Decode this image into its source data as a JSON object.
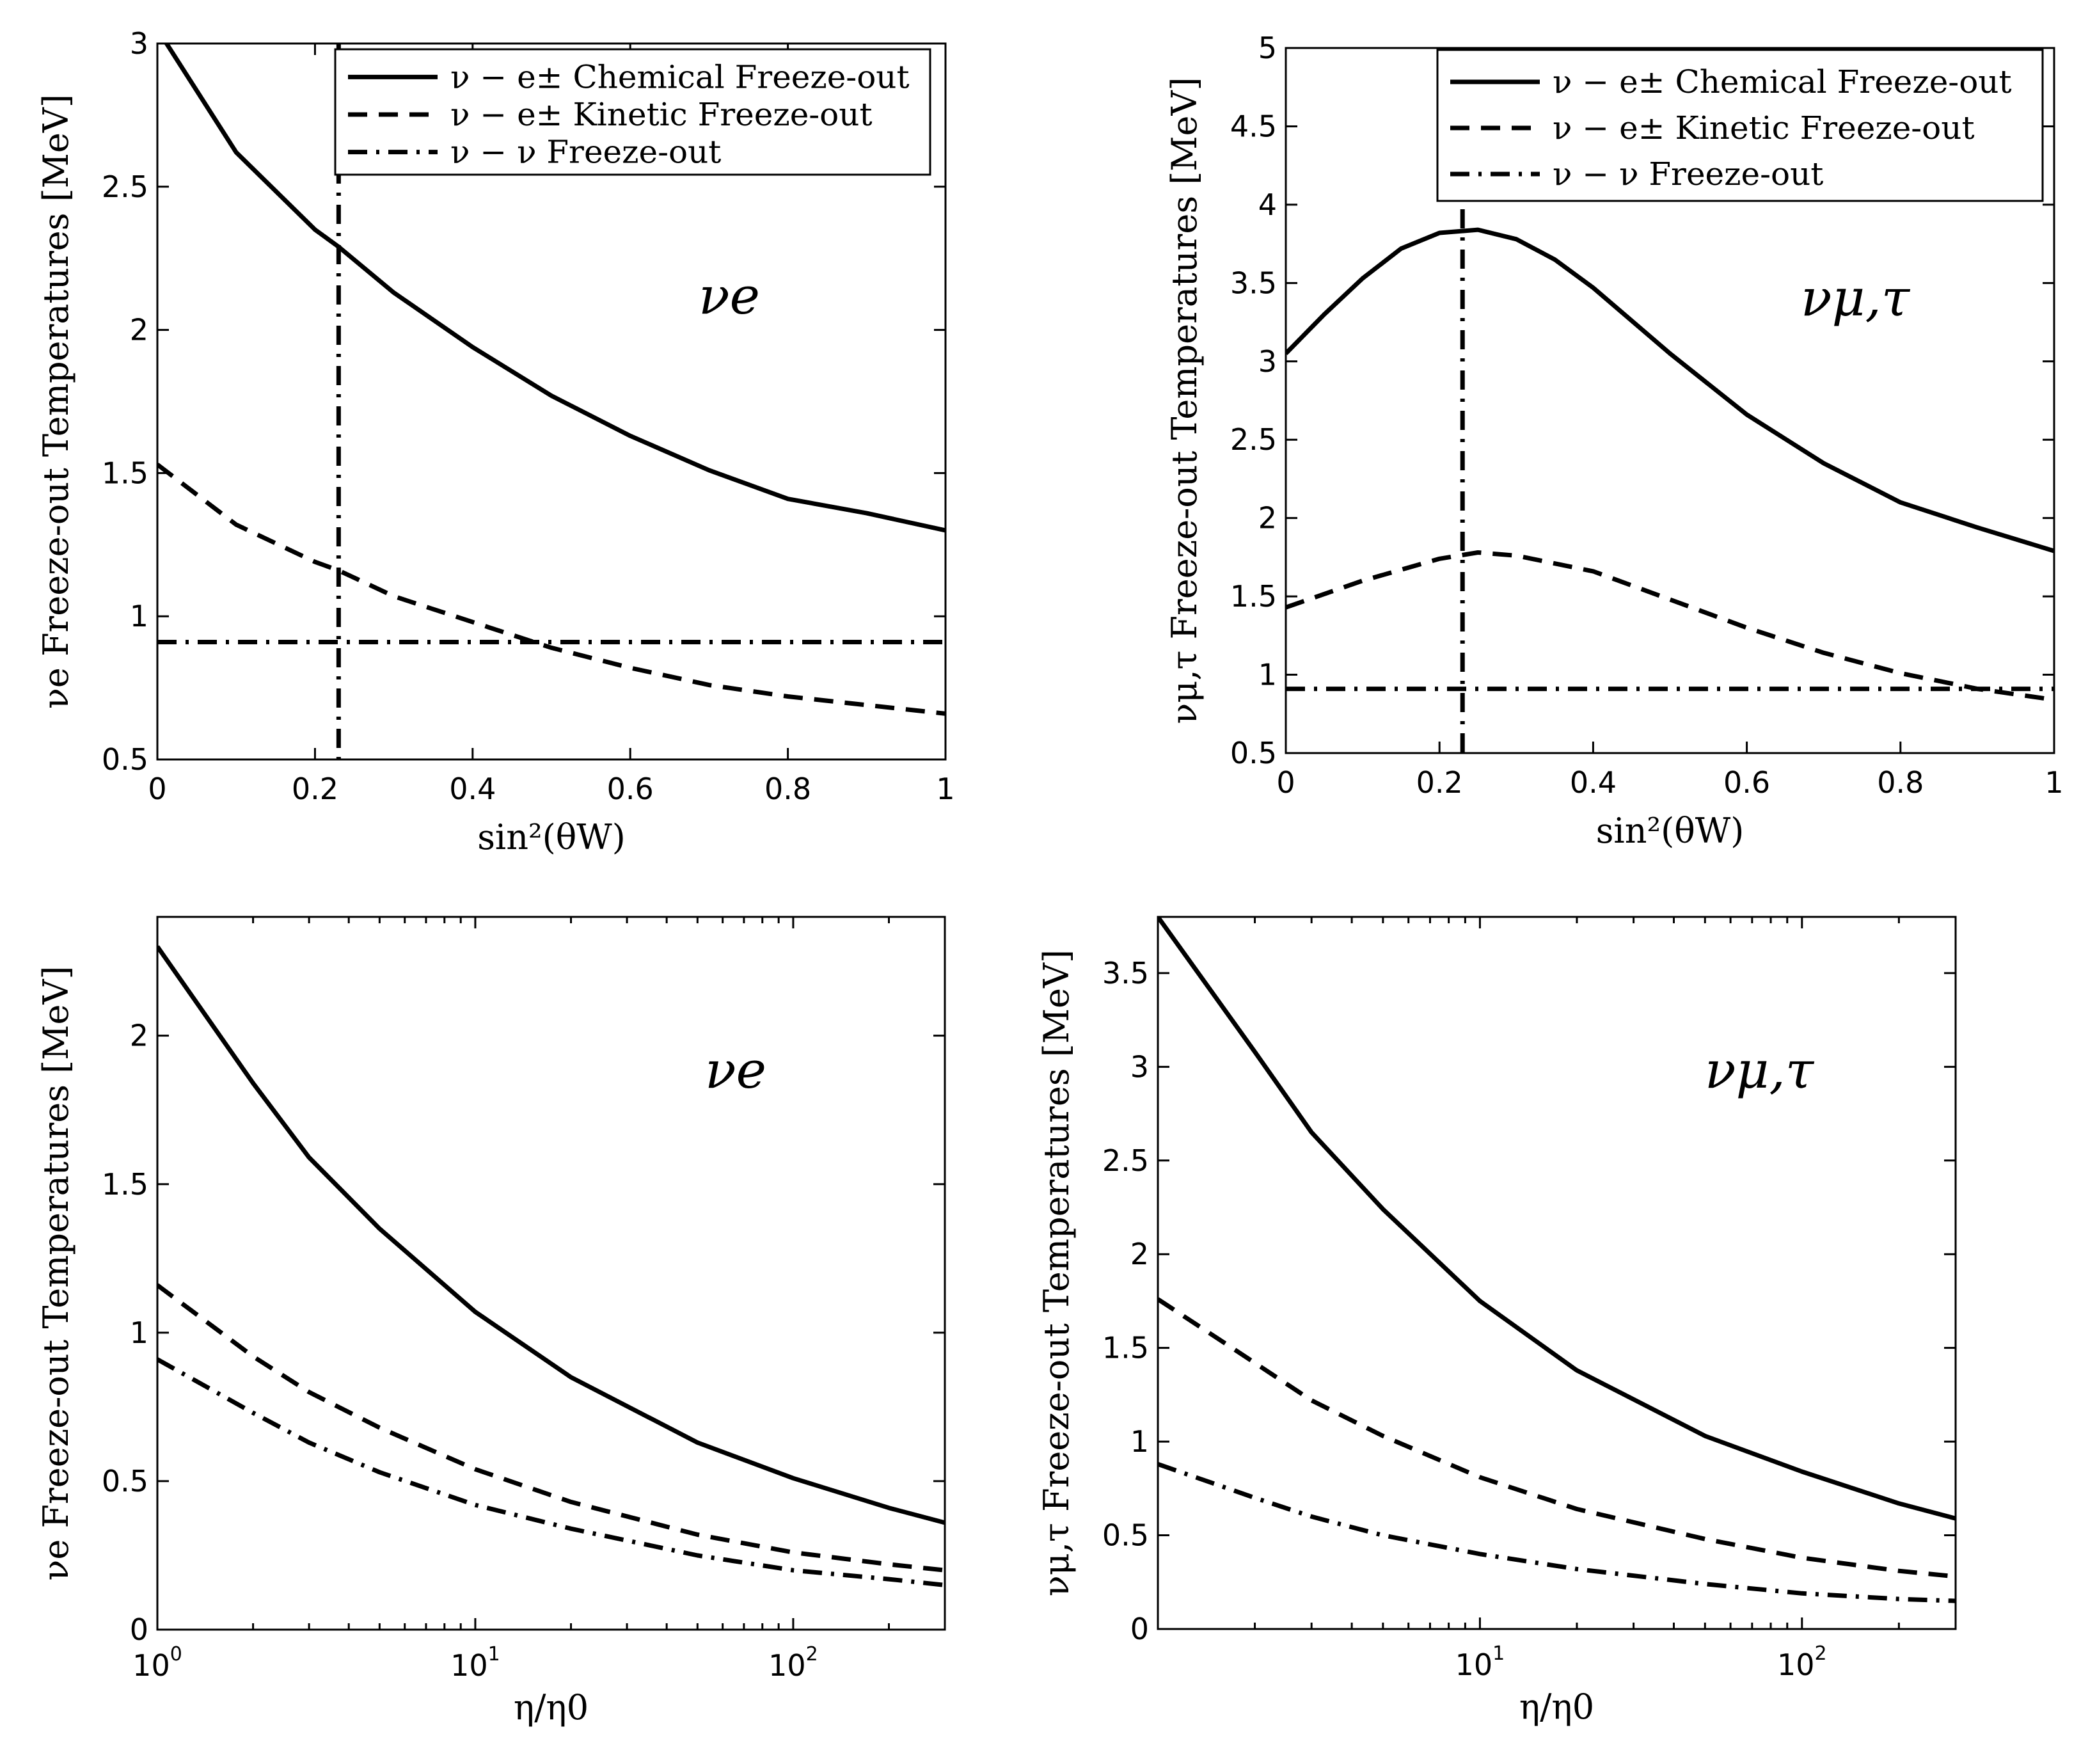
{
  "chart_data": [
    {
      "id": "top-left",
      "type": "line",
      "xscale": "linear",
      "xlim": [
        0,
        1
      ],
      "ylim": [
        0.5,
        3
      ],
      "xticks": [
        0,
        0.2,
        0.4,
        0.6,
        0.8,
        1
      ],
      "xtick_labels": [
        "0",
        "0.2",
        "0.4",
        "0.6",
        "0.8",
        "1"
      ],
      "yticks": [
        0.5,
        1,
        1.5,
        2,
        2.5,
        3
      ],
      "ytick_labels": [
        "0.5",
        "1",
        "1.5",
        "2",
        "2.5",
        "3"
      ],
      "xlabel": "sin²(θW)",
      "ylabel": "νe Freeze-out Temperatures [MeV]",
      "annotation": "νe",
      "legend_position": "top-right",
      "reference_vline": 0.23,
      "series": [
        {
          "name": "ν − e± Chemical Freeze-out",
          "style": "solid",
          "x": [
            0,
            0.1,
            0.2,
            0.23,
            0.3,
            0.4,
            0.5,
            0.6,
            0.7,
            0.8,
            0.9,
            1.0
          ],
          "y": [
            3.05,
            2.62,
            2.35,
            2.29,
            2.13,
            1.94,
            1.77,
            1.63,
            1.51,
            1.41,
            1.36,
            1.3
          ]
        },
        {
          "name": "ν − e± Kinetic Freeze-out",
          "style": "dashed",
          "x": [
            0,
            0.1,
            0.2,
            0.23,
            0.3,
            0.4,
            0.5,
            0.6,
            0.7,
            0.8,
            0.9,
            1.0
          ],
          "y": [
            1.53,
            1.32,
            1.19,
            1.16,
            1.07,
            0.98,
            0.89,
            0.82,
            0.76,
            0.72,
            0.69,
            0.66
          ]
        },
        {
          "name": "ν − ν Freeze-out",
          "style": "dashdot",
          "x": [
            0,
            1
          ],
          "y": [
            0.91,
            0.91
          ]
        }
      ]
    },
    {
      "id": "top-right",
      "type": "line",
      "xscale": "linear",
      "xlim": [
        0,
        1
      ],
      "ylim": [
        0.5,
        5
      ],
      "xticks": [
        0,
        0.2,
        0.4,
        0.6,
        0.8,
        1
      ],
      "xtick_labels": [
        "0",
        "0.2",
        "0.4",
        "0.6",
        "0.8",
        "1"
      ],
      "yticks": [
        0.5,
        1,
        1.5,
        2,
        2.5,
        3,
        3.5,
        4,
        4.5,
        5
      ],
      "ytick_labels": [
        "0.5",
        "1",
        "1.5",
        "2",
        "2.5",
        "3",
        "3.5",
        "4",
        "4.5",
        "5"
      ],
      "xlabel": "sin²(θW)",
      "ylabel": "νμ,τ Freeze-out Temperatures [MeV]",
      "annotation": "νμ,τ",
      "legend_position": "top-right",
      "reference_vline": 0.23,
      "series": [
        {
          "name": "ν − e± Chemical Freeze-out",
          "style": "solid",
          "x": [
            0,
            0.05,
            0.1,
            0.15,
            0.2,
            0.25,
            0.3,
            0.35,
            0.4,
            0.5,
            0.6,
            0.7,
            0.8,
            0.9,
            1.0
          ],
          "y": [
            3.05,
            3.3,
            3.53,
            3.72,
            3.82,
            3.84,
            3.78,
            3.65,
            3.47,
            3.05,
            2.66,
            2.35,
            2.1,
            1.94,
            1.79
          ]
        },
        {
          "name": "ν − e± Kinetic Freeze-out",
          "style": "dashed",
          "x": [
            0,
            0.1,
            0.2,
            0.25,
            0.3,
            0.4,
            0.5,
            0.6,
            0.7,
            0.8,
            0.9,
            1.0
          ],
          "y": [
            1.43,
            1.6,
            1.74,
            1.78,
            1.76,
            1.66,
            1.48,
            1.3,
            1.14,
            1.01,
            0.91,
            0.84
          ]
        },
        {
          "name": "ν − ν Freeze-out",
          "style": "dashdot",
          "x": [
            0,
            1
          ],
          "y": [
            0.91,
            0.91
          ]
        }
      ]
    },
    {
      "id": "bottom-left",
      "type": "line",
      "xscale": "log",
      "xlim": [
        1,
        300
      ],
      "ylim": [
        0,
        2.4
      ],
      "xticks": [
        1,
        10,
        100
      ],
      "xtick_labels": [
        [
          "10",
          "0"
        ],
        [
          "10",
          "1"
        ],
        [
          "10",
          "2"
        ]
      ],
      "yticks": [
        0,
        0.5,
        1,
        1.5,
        2
      ],
      "ytick_labels": [
        "0",
        "0.5",
        "1",
        "1.5",
        "2"
      ],
      "xlabel": "η/η0",
      "ylabel": "νe Freeze-out Temperatures [MeV]",
      "annotation": "νe",
      "series": [
        {
          "name": "ν − e± Chemical Freeze-out",
          "style": "solid",
          "x": [
            1,
            2,
            3,
            5,
            10,
            20,
            50,
            100,
            200,
            300
          ],
          "y": [
            2.3,
            1.84,
            1.59,
            1.35,
            1.07,
            0.85,
            0.63,
            0.51,
            0.41,
            0.36
          ]
        },
        {
          "name": "ν − e± Kinetic Freeze-out",
          "style": "dashed",
          "x": [
            1,
            2,
            3,
            5,
            10,
            20,
            50,
            100,
            200,
            300
          ],
          "y": [
            1.16,
            0.92,
            0.8,
            0.68,
            0.54,
            0.43,
            0.32,
            0.26,
            0.22,
            0.2
          ]
        },
        {
          "name": "ν − ν Freeze-out",
          "style": "dashdot",
          "x": [
            1,
            2,
            3,
            5,
            10,
            20,
            50,
            100,
            200,
            300
          ],
          "y": [
            0.91,
            0.73,
            0.63,
            0.53,
            0.42,
            0.34,
            0.25,
            0.2,
            0.17,
            0.15
          ]
        }
      ]
    },
    {
      "id": "bottom-right",
      "type": "line",
      "xscale": "log",
      "xlim": [
        1,
        300
      ],
      "ylim": [
        0,
        3.8
      ],
      "xticks": [
        10,
        100
      ],
      "xtick_labels": [
        [
          "10",
          "1"
        ],
        [
          "10",
          "2"
        ]
      ],
      "yticks": [
        0,
        0.5,
        1,
        1.5,
        2,
        2.5,
        3,
        3.5
      ],
      "ytick_labels": [
        "0",
        "0.5",
        "1",
        "1.5",
        "2",
        "2.5",
        "3",
        "3.5"
      ],
      "xlabel": "η/η0",
      "ylabel": "νμ,τ Freeze-out Temperatures [MeV]",
      "annotation": "νμ,τ",
      "series": [
        {
          "name": "ν − e± Chemical Freeze-out",
          "style": "solid",
          "x": [
            1,
            2,
            3,
            5,
            10,
            20,
            50,
            100,
            200,
            300
          ],
          "y": [
            3.8,
            3.08,
            2.65,
            2.24,
            1.75,
            1.38,
            1.03,
            0.84,
            0.67,
            0.59
          ]
        },
        {
          "name": "ν − e± Kinetic Freeze-out",
          "style": "dashed",
          "x": [
            1,
            2,
            3,
            5,
            10,
            20,
            50,
            100,
            200,
            300
          ],
          "y": [
            1.76,
            1.42,
            1.22,
            1.03,
            0.81,
            0.64,
            0.48,
            0.38,
            0.31,
            0.28
          ]
        },
        {
          "name": "ν − ν Freeze-out",
          "style": "dashdot",
          "x": [
            1,
            2,
            3,
            5,
            10,
            20,
            50,
            100,
            200,
            300
          ],
          "y": [
            0.88,
            0.7,
            0.6,
            0.5,
            0.4,
            0.32,
            0.24,
            0.19,
            0.16,
            0.15
          ]
        }
      ]
    }
  ]
}
